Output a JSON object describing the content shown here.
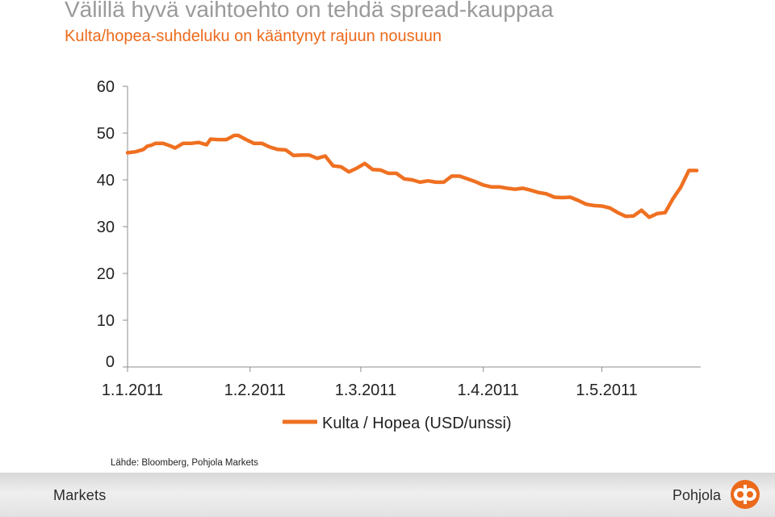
{
  "slide": {
    "title": "Välillä hyvä vaihtoehto on tehdä spread-kauppaa",
    "subtitle": "Kulta/hopea-suhdeluku on kääntynyt rajuun nousuun",
    "source": "Lähde: Bloomberg, Pohjola Markets",
    "footer_left": "Markets",
    "footer_right": "Pohjola",
    "logo_icon": "pohjola-logo-icon"
  },
  "colors": {
    "title": "#9a9a9a",
    "accent": "#ec6a1b",
    "series": "#ef7021"
  },
  "chart_data": {
    "type": "line",
    "ylim": [
      0,
      60
    ],
    "yticks": [
      0,
      10,
      20,
      30,
      40,
      50,
      60
    ],
    "xlim": [
      "2011-01-01",
      "2011-05-26"
    ],
    "xticks": [
      "2011-01-01",
      "2011-02-01",
      "2011-03-01",
      "2011-04-01",
      "2011-05-01"
    ],
    "xtick_labels": [
      "1.1.2011",
      "1.2.2011",
      "1.3.2011",
      "1.4.2011",
      "1.5.2011"
    ],
    "grid": false,
    "legend_position": "bottom",
    "series": [
      {
        "name": "Kulta / Hopea (USD/unssi)",
        "x": [
          "2011-01-01",
          "2011-01-03",
          "2011-01-05",
          "2011-01-06",
          "2011-01-07",
          "2011-01-08",
          "2011-01-10",
          "2011-01-12",
          "2011-01-13",
          "2011-01-15",
          "2011-01-17",
          "2011-01-19",
          "2011-01-21",
          "2011-01-22",
          "2011-01-24",
          "2011-01-26",
          "2011-01-28",
          "2011-01-29",
          "2011-01-31",
          "2011-02-02",
          "2011-02-04",
          "2011-02-06",
          "2011-02-08",
          "2011-02-10",
          "2011-02-12",
          "2011-02-14",
          "2011-02-16",
          "2011-02-18",
          "2011-02-20",
          "2011-02-22",
          "2011-02-24",
          "2011-02-26",
          "2011-02-28",
          "2011-03-02",
          "2011-03-04",
          "2011-03-06",
          "2011-03-08",
          "2011-03-10",
          "2011-03-12",
          "2011-03-14",
          "2011-03-16",
          "2011-03-18",
          "2011-03-20",
          "2011-03-22",
          "2011-03-24",
          "2011-03-26",
          "2011-03-28",
          "2011-03-30",
          "2011-04-01",
          "2011-04-03",
          "2011-04-05",
          "2011-04-07",
          "2011-04-09",
          "2011-04-11",
          "2011-04-13",
          "2011-04-15",
          "2011-04-17",
          "2011-04-19",
          "2011-04-21",
          "2011-04-23",
          "2011-04-25",
          "2011-04-27",
          "2011-04-29",
          "2011-05-01",
          "2011-05-03",
          "2011-05-05",
          "2011-05-07",
          "2011-05-09",
          "2011-05-11",
          "2011-05-13",
          "2011-05-15",
          "2011-05-17",
          "2011-05-19",
          "2011-05-21",
          "2011-05-23",
          "2011-05-25"
        ],
        "values": [
          45.8,
          46.0,
          46.5,
          47.2,
          47.4,
          47.8,
          47.8,
          47.2,
          46.8,
          47.8,
          47.8,
          48.0,
          47.5,
          48.7,
          48.6,
          48.6,
          49.5,
          49.5,
          48.6,
          47.8,
          47.8,
          47.0,
          46.5,
          46.4,
          45.2,
          45.3,
          45.3,
          44.6,
          45.1,
          43.0,
          42.8,
          41.7,
          42.5,
          43.5,
          42.2,
          42.1,
          41.4,
          41.4,
          40.2,
          40.0,
          39.5,
          39.8,
          39.5,
          39.5,
          40.8,
          40.8,
          40.2,
          39.6,
          38.9,
          38.5,
          38.5,
          38.2,
          38.0,
          38.2,
          37.8,
          37.3,
          37.0,
          36.3,
          36.2,
          36.3,
          35.6,
          34.8,
          34.5,
          34.4,
          34.0,
          33.0,
          32.2,
          32.3,
          33.5,
          32.0,
          32.8,
          33.0,
          36.0,
          38.5,
          42.0,
          42.0
        ]
      }
    ]
  }
}
